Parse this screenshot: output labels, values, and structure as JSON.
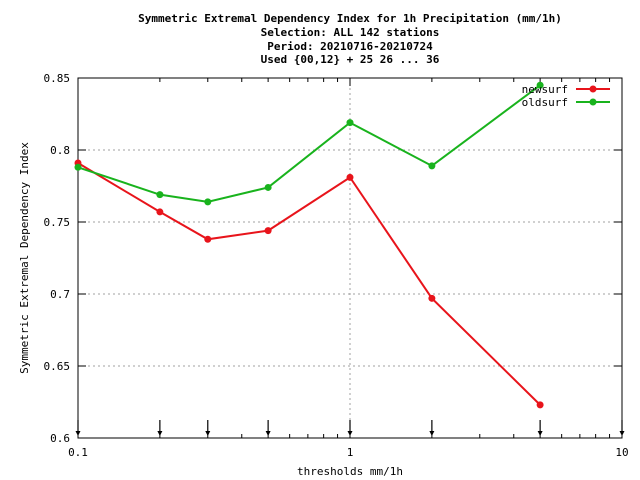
{
  "chart_data": {
    "type": "line",
    "title_lines": [
      "Symmetric Extremal Dependency Index  for 1h Precipitation (mm/1h)",
      "Selection: ALL    142 stations",
      "Period: 20210716-20210724",
      "Used {00,12} + 25 26 ... 36"
    ],
    "xlabel": "thresholds mm/1h",
    "ylabel": "Symmetric Extremal Dependency Index",
    "x_scale": "log",
    "xlim": [
      0.1,
      10
    ],
    "ylim": [
      0.6,
      0.85
    ],
    "x_ticks": [
      "0.1",
      "1",
      "10"
    ],
    "y_ticks": [
      "0.6",
      "0.65",
      "0.7",
      "0.75",
      "0.8",
      "0.85"
    ],
    "grid": true,
    "legend_position": "top-right",
    "x_markers": [
      0.1,
      0.2,
      0.3,
      0.5,
      1,
      2,
      5,
      10
    ],
    "x": [
      0.1,
      0.2,
      0.3,
      0.5,
      1,
      2,
      5
    ],
    "series": [
      {
        "name": "newsurf",
        "color": "#e8141b",
        "values": [
          0.791,
          0.757,
          0.738,
          0.744,
          0.781,
          0.697,
          0.623
        ]
      },
      {
        "name": "oldsurf",
        "color": "#19b31d",
        "values": [
          0.788,
          0.769,
          0.764,
          0.774,
          0.819,
          0.789,
          0.845
        ]
      }
    ]
  }
}
